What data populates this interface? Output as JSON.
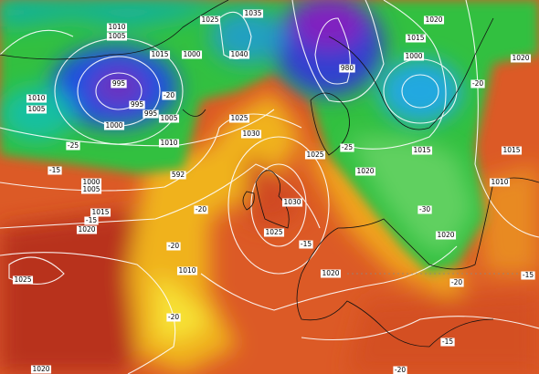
{
  "map": {
    "isobar_labels": [
      "1005",
      "1010",
      "1015",
      "1000",
      "995",
      "995",
      "995",
      "1000",
      "1005",
      "1010",
      "1005",
      "1010",
      "1000",
      "1005",
      "1015",
      "1020",
      "1025",
      "1025",
      "1035",
      "1040",
      "1025",
      "1030",
      "1025",
      "1020",
      "1015",
      "1015",
      "1020",
      "1000",
      "1010",
      "1015",
      "1020",
      "1030",
      "1025",
      "1020",
      "1010",
      "1020",
      "1020",
      "980",
      "592"
    ],
    "temperature_labels": [
      "-20",
      "-15",
      "-20",
      "-15",
      "-20",
      "-25",
      "-15",
      "-20",
      "-25",
      "-20",
      "-30",
      "-20",
      "-15",
      "-15",
      "-20"
    ]
  }
}
